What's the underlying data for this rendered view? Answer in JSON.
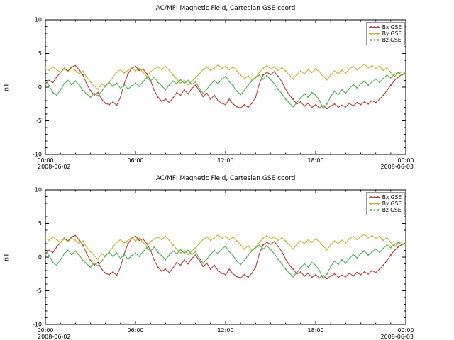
{
  "figure": {
    "background": "#ffffff"
  },
  "chart_data": [
    {
      "type": "line",
      "title": "AC/MFI Magnetic Field, Cartesian GSE coord",
      "xlabel": "",
      "ylabel": "nT",
      "ylim": [
        -10,
        10
      ],
      "yticks": [
        10,
        5,
        0,
        -5,
        -10
      ],
      "xtick_hours": [
        0,
        6,
        12,
        18,
        24
      ],
      "xtick_labels": [
        "00:00",
        "06:00",
        "12:00",
        "18:00",
        "00:00"
      ],
      "x_start_date": "2008-06-02",
      "x_end_date": "2008-06-03",
      "x_step_hours": 0.25,
      "grid": false,
      "legend_position": "top-right",
      "series": [
        {
          "id": "bx",
          "name": "Bx GSE",
          "color": "#b5463c",
          "values": [
            0.5,
            1.0,
            0.7,
            1.5,
            2.2,
            2.8,
            2.4,
            3.0,
            3.2,
            2.6,
            1.8,
            0.5,
            -0.5,
            -1.2,
            -0.8,
            -1.8,
            -2.4,
            -2.6,
            -2.2,
            -2.7,
            -1.5,
            0.5,
            2.0,
            2.8,
            3.1,
            2.5,
            2.7,
            2.0,
            1.0,
            -0.5,
            -1.5,
            -2.1,
            -1.8,
            -2.3,
            -1.6,
            -0.8,
            -1.2,
            -0.4,
            -1.0,
            -0.2,
            0.3,
            -0.5,
            -1.4,
            -0.9,
            -1.8,
            -1.2,
            -2.0,
            -2.4,
            -2.6,
            -1.8,
            -2.5,
            -2.9,
            -3.1,
            -2.6,
            -3.0,
            -2.4,
            -1.5,
            0.5,
            1.8,
            2.2,
            1.9,
            2.3,
            1.6,
            0.8,
            -0.3,
            -1.2,
            -1.8,
            -2.5,
            -2.2,
            -2.8,
            -2.4,
            -3.0,
            -2.6,
            -3.1,
            -2.7,
            -3.2,
            -2.8,
            -2.5,
            -3.0,
            -2.7,
            -2.9,
            -2.4,
            -2.8,
            -2.3,
            -2.6,
            -2.2,
            -2.5,
            -2.0,
            -2.3,
            -1.8,
            -1.2,
            -0.5,
            0.3,
            1.0,
            1.5,
            1.9,
            2.1
          ]
        },
        {
          "id": "by",
          "name": "By GSE",
          "color": "#c6b83a",
          "values": [
            2.8,
            2.5,
            3.0,
            2.6,
            2.2,
            2.7,
            2.3,
            2.8,
            2.5,
            2.0,
            2.4,
            1.5,
            0.8,
            0.2,
            -0.3,
            0.5,
            0.1,
            0.8,
            1.5,
            2.2,
            2.6,
            2.1,
            2.5,
            2.9,
            2.4,
            2.8,
            2.2,
            1.6,
            2.3,
            2.7,
            3.0,
            2.6,
            3.1,
            2.5,
            1.8,
            1.2,
            0.6,
            1.0,
            0.4,
            0.9,
            1.4,
            2.0,
            2.6,
            3.0,
            2.5,
            2.9,
            3.3,
            2.8,
            3.1,
            2.6,
            3.0,
            2.4,
            1.8,
            1.2,
            1.7,
            1.0,
            1.5,
            2.2,
            2.8,
            3.2,
            2.7,
            3.0,
            2.5,
            2.9,
            2.4,
            1.8,
            1.2,
            1.9,
            2.4,
            2.0,
            2.6,
            2.2,
            2.7,
            2.3,
            1.6,
            1.1,
            1.8,
            2.4,
            2.0,
            2.5,
            2.1,
            2.7,
            3.1,
            2.6,
            3.0,
            3.4,
            2.9,
            3.2,
            2.8,
            3.1,
            2.5,
            2.9,
            2.2,
            1.6,
            2.0,
            2.3,
            2.1
          ]
        },
        {
          "id": "bz",
          "name": "Bz GSE",
          "color": "#54b357",
          "values": [
            0.8,
            0.2,
            -0.8,
            -1.2,
            -0.4,
            0.5,
            1.0,
            0.4,
            0.9,
            0.3,
            -0.5,
            -1.0,
            -1.5,
            -0.9,
            -1.3,
            -0.6,
            0.2,
            0.7,
            0.1,
            0.6,
            -0.2,
            0.4,
            -0.3,
            0.2,
            0.6,
            0.1,
            0.8,
            1.4,
            0.9,
            1.5,
            0.7,
            0.2,
            -0.4,
            0.3,
            0.9,
            0.5,
            1.1,
            0.6,
            1.0,
            0.4,
            0.8,
            -0.2,
            -0.9,
            -0.3,
            0.4,
            1.0,
            0.5,
            1.2,
            1.6,
            0.8,
            0.2,
            -0.6,
            -1.1,
            -0.5,
            0.3,
            0.9,
            1.4,
            1.8,
            1.2,
            1.7,
            1.1,
            0.5,
            -0.3,
            -1.0,
            -1.8,
            -2.4,
            -2.9,
            -2.3,
            -1.6,
            -1.0,
            -1.5,
            -0.8,
            -1.2,
            -2.0,
            -3.2,
            -2.5,
            -1.4,
            -0.6,
            -1.1,
            -0.4,
            -0.9,
            -0.2,
            0.4,
            -0.1,
            0.5,
            0.9,
            0.3,
            0.8,
            1.2,
            0.7,
            1.3,
            1.8,
            1.4,
            1.9,
            2.2,
            1.8,
            2.1
          ]
        }
      ]
    },
    {
      "type": "line",
      "title": "AC/MFI Magnetic Field, Cartesian GSE coord",
      "xlabel": "",
      "ylabel": "nT",
      "ylim": [
        -10,
        10
      ],
      "yticks": [
        10,
        5,
        0,
        -5,
        -10
      ],
      "xtick_hours": [
        0,
        6,
        12,
        18,
        24
      ],
      "xtick_labels": [
        "00:00",
        "06:00",
        "12:00",
        "18:00",
        "00:00"
      ],
      "x_start_date": "2008-06-02",
      "x_end_date": "2008-06-03",
      "x_step_hours": 0.25,
      "grid": false,
      "legend_position": "top-right",
      "series": [
        {
          "id": "bx",
          "name": "Bx GSE",
          "color": "#b5463c",
          "values": [
            0.5,
            1.0,
            0.7,
            1.5,
            2.2,
            2.8,
            2.4,
            3.0,
            3.2,
            2.6,
            1.8,
            0.5,
            -0.5,
            -1.2,
            -0.8,
            -1.8,
            -2.4,
            -2.6,
            -2.2,
            -2.7,
            -1.5,
            0.5,
            2.0,
            2.8,
            3.1,
            2.5,
            2.7,
            2.0,
            1.0,
            -0.5,
            -1.5,
            -2.1,
            -1.8,
            -2.3,
            -1.6,
            -0.8,
            -1.2,
            -0.4,
            -1.0,
            -0.2,
            0.3,
            -0.5,
            -1.4,
            -0.9,
            -1.8,
            -1.2,
            -2.0,
            -2.4,
            -2.6,
            -1.8,
            -2.5,
            -2.9,
            -3.1,
            -2.6,
            -3.0,
            -2.4,
            -1.5,
            0.5,
            1.8,
            2.2,
            1.9,
            2.3,
            1.6,
            0.8,
            -0.3,
            -1.2,
            -1.8,
            -2.5,
            -2.2,
            -2.8,
            -2.4,
            -3.0,
            -2.6,
            -3.1,
            -2.7,
            -3.2,
            -2.8,
            -2.5,
            -3.0,
            -2.7,
            -2.9,
            -2.4,
            -2.8,
            -2.3,
            -2.6,
            -2.2,
            -2.5,
            -2.0,
            -2.3,
            -1.8,
            -1.2,
            -0.5,
            0.3,
            1.0,
            1.5,
            1.9,
            2.1
          ]
        },
        {
          "id": "by",
          "name": "By GSE",
          "color": "#c6b83a",
          "values": [
            2.8,
            2.5,
            3.0,
            2.6,
            2.2,
            2.7,
            2.3,
            2.8,
            2.5,
            2.0,
            2.4,
            1.5,
            0.8,
            0.2,
            -0.3,
            0.5,
            0.1,
            0.8,
            1.5,
            2.2,
            2.6,
            2.1,
            2.5,
            2.9,
            2.4,
            2.8,
            2.2,
            1.6,
            2.3,
            2.7,
            3.0,
            2.6,
            3.1,
            2.5,
            1.8,
            1.2,
            0.6,
            1.0,
            0.4,
            0.9,
            1.4,
            2.0,
            2.6,
            3.0,
            2.5,
            2.9,
            3.3,
            2.8,
            3.1,
            2.6,
            3.0,
            2.4,
            1.8,
            1.2,
            1.7,
            1.0,
            1.5,
            2.2,
            2.8,
            3.2,
            2.7,
            3.0,
            2.5,
            2.9,
            2.4,
            1.8,
            1.2,
            1.9,
            2.4,
            2.0,
            2.6,
            2.2,
            2.7,
            2.3,
            1.6,
            1.1,
            1.8,
            2.4,
            2.0,
            2.5,
            2.1,
            2.7,
            3.1,
            2.6,
            3.0,
            3.4,
            2.9,
            3.2,
            2.8,
            3.1,
            2.5,
            2.9,
            2.2,
            1.6,
            2.0,
            2.3,
            2.1
          ]
        },
        {
          "id": "bz",
          "name": "Bz GSE",
          "color": "#54b357",
          "values": [
            0.8,
            0.2,
            -0.8,
            -1.2,
            -0.4,
            0.5,
            1.0,
            0.4,
            0.9,
            0.3,
            -0.5,
            -1.0,
            -1.5,
            -0.9,
            -1.3,
            -0.6,
            0.2,
            0.7,
            0.1,
            0.6,
            -0.2,
            0.4,
            -0.3,
            0.2,
            0.6,
            0.1,
            0.8,
            1.4,
            0.9,
            1.5,
            0.7,
            0.2,
            -0.4,
            0.3,
            0.9,
            0.5,
            1.1,
            0.6,
            1.0,
            0.4,
            0.8,
            -0.2,
            -0.9,
            -0.3,
            0.4,
            1.0,
            0.5,
            1.2,
            1.6,
            0.8,
            0.2,
            -0.6,
            -1.1,
            -0.5,
            0.3,
            0.9,
            1.4,
            1.8,
            1.2,
            1.7,
            1.1,
            0.5,
            -0.3,
            -1.0,
            -1.8,
            -2.4,
            -2.9,
            -2.3,
            -1.6,
            -1.0,
            -1.5,
            -0.8,
            -1.2,
            -2.0,
            -3.2,
            -2.5,
            -1.4,
            -0.6,
            -1.1,
            -0.4,
            -0.9,
            -0.2,
            0.4,
            -0.1,
            0.5,
            0.9,
            0.3,
            0.8,
            1.2,
            0.7,
            1.3,
            1.8,
            1.4,
            1.9,
            2.2,
            1.8,
            2.1
          ]
        }
      ]
    }
  ]
}
